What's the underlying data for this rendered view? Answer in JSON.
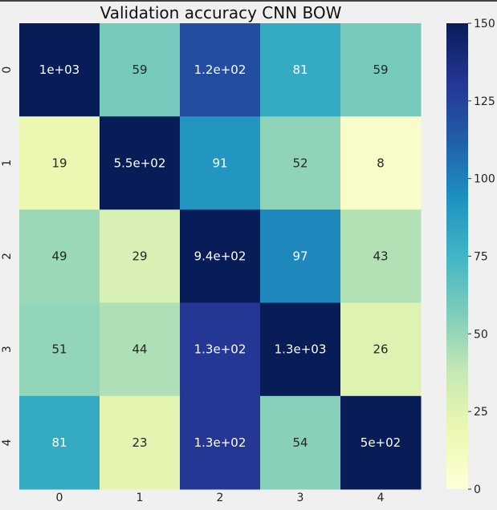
{
  "chart_data": {
    "type": "heatmap",
    "title": "Validation accuracy CNN BOW",
    "x_categories": [
      "0",
      "1",
      "2",
      "3",
      "4"
    ],
    "y_categories": [
      "0",
      "1",
      "2",
      "3",
      "4"
    ],
    "values": [
      [
        1000,
        59,
        120,
        81,
        59
      ],
      [
        19,
        550,
        91,
        52,
        8
      ],
      [
        49,
        29,
        940,
        97,
        43
      ],
      [
        51,
        44,
        130,
        1300,
        26
      ],
      [
        81,
        23,
        130,
        54,
        500
      ]
    ],
    "annotations": [
      [
        "1e+03",
        "59",
        "1.2e+02",
        "81",
        "59"
      ],
      [
        "19",
        "5.5e+02",
        "91",
        "52",
        "8"
      ],
      [
        "49",
        "29",
        "9.4e+02",
        "97",
        "43"
      ],
      [
        "51",
        "44",
        "1.3e+02",
        "1.3e+03",
        "26"
      ],
      [
        "81",
        "23",
        "1.3e+02",
        "54",
        "5e+02"
      ]
    ],
    "colorbar": {
      "min": 0,
      "max": 150,
      "ticks": [
        0,
        25,
        50,
        75,
        100,
        125,
        150
      ],
      "colormap": "YlGnBu"
    }
  }
}
